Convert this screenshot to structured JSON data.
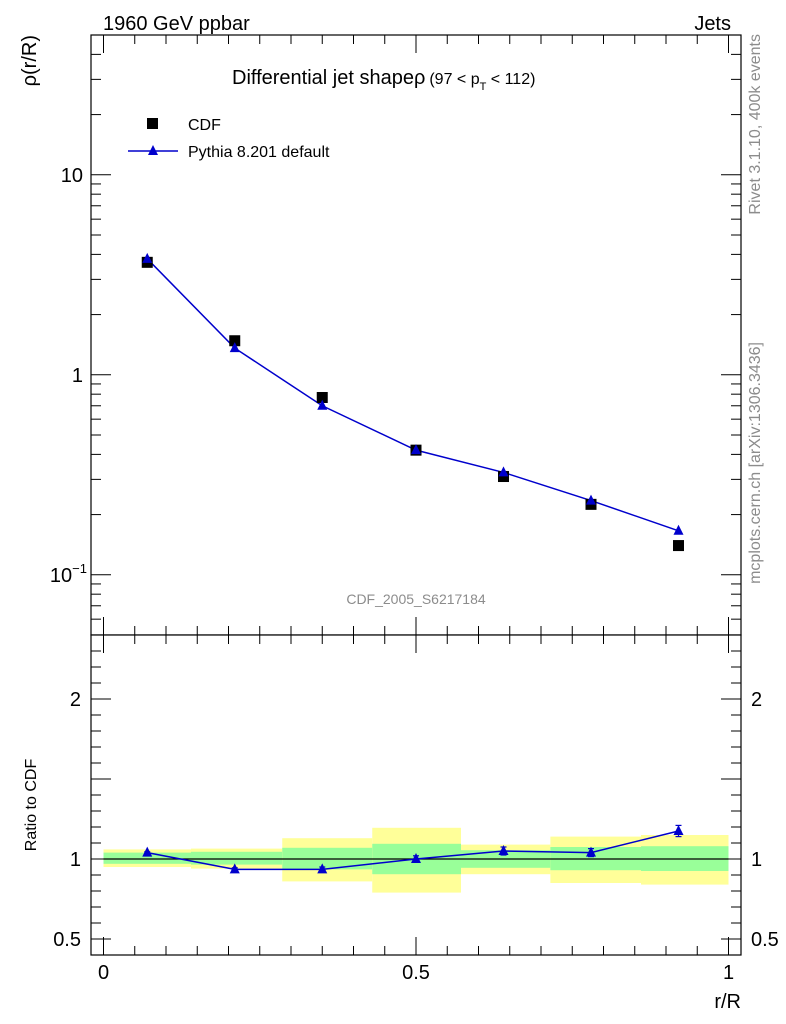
{
  "header": {
    "left": "1960 GeV ppbar",
    "right": "Jets"
  },
  "side_labels": {
    "top": "Rivet 3.1.10,  400k events",
    "bottom": "mcplots.cern.ch [arXiv:1306.3436]"
  },
  "watermark": "CDF_2005_S6217184",
  "chart_data": [
    {
      "type": "scatter",
      "title": "Differential jet shapeρ",
      "title_range": "(97 < p",
      "title_range_sub": "T",
      "title_range_end": " < 112)",
      "ylabel": "ρ(r/R)",
      "yscale": "log",
      "xlim": [
        -0.02,
        1.02
      ],
      "ylim": [
        0.05,
        50
      ],
      "y_ticks": [
        {
          "value": 10,
          "label": "10"
        },
        {
          "value": 1,
          "label": "1"
        },
        {
          "value": 0.1,
          "label": "10",
          "sup": "−1"
        }
      ],
      "legend_position": "top-left",
      "series": [
        {
          "name": "CDF",
          "marker": "square",
          "color": "#000000",
          "x": [
            0.07,
            0.21,
            0.35,
            0.5,
            0.64,
            0.78,
            0.92
          ],
          "y": [
            3.65,
            1.48,
            0.77,
            0.42,
            0.31,
            0.225,
            0.14
          ]
        },
        {
          "name": "Pythia 8.201 default",
          "marker": "triangle",
          "color": "#0000cc",
          "x": [
            0.07,
            0.21,
            0.35,
            0.5,
            0.64,
            0.78,
            0.92
          ],
          "y": [
            3.8,
            1.36,
            0.7,
            0.42,
            0.325,
            0.235,
            0.166
          ]
        }
      ]
    },
    {
      "type": "scatter",
      "xlabel": "r/R",
      "ylabel": "Ratio to CDF",
      "xlim": [
        -0.02,
        1.02
      ],
      "ylim": [
        0.4,
        2.4
      ],
      "x_ticks": [
        {
          "value": 0,
          "label": "0"
        },
        {
          "value": 0.5,
          "label": "0.5"
        },
        {
          "value": 1,
          "label": "1"
        }
      ],
      "y_ticks": [
        {
          "value": 2,
          "label": "2"
        },
        {
          "value": 1,
          "label": "1"
        },
        {
          "value": 0.5,
          "label": "0.5"
        }
      ],
      "bands": [
        {
          "x0": 0.0,
          "x1": 0.14,
          "green": [
            0.97,
            1.04
          ],
          "yellow": [
            0.95,
            1.06
          ]
        },
        {
          "x0": 0.14,
          "x1": 0.286,
          "green": [
            0.965,
            1.045
          ],
          "yellow": [
            0.94,
            1.065
          ]
        },
        {
          "x0": 0.286,
          "x1": 0.43,
          "green": [
            0.935,
            1.07
          ],
          "yellow": [
            0.86,
            1.13
          ]
        },
        {
          "x0": 0.43,
          "x1": 0.572,
          "green": [
            0.905,
            1.095
          ],
          "yellow": [
            0.79,
            1.195
          ]
        },
        {
          "x0": 0.572,
          "x1": 0.715,
          "green": [
            0.945,
            1.055
          ],
          "yellow": [
            0.905,
            1.09
          ]
        },
        {
          "x0": 0.715,
          "x1": 0.86,
          "green": [
            0.93,
            1.075
          ],
          "yellow": [
            0.85,
            1.14
          ]
        },
        {
          "x0": 0.86,
          "x1": 1.0,
          "green": [
            0.925,
            1.08
          ],
          "yellow": [
            0.84,
            1.15
          ]
        }
      ],
      "series": [
        {
          "name": "Pythia 8.201 default",
          "marker": "triangle",
          "color": "#0000cc",
          "x": [
            0.07,
            0.21,
            0.35,
            0.5,
            0.64,
            0.78,
            0.92
          ],
          "y": [
            1.04,
            0.935,
            0.935,
            1.0,
            1.05,
            1.04,
            1.175
          ],
          "err": [
            0.005,
            0.01,
            0.015,
            0.02,
            0.025,
            0.025,
            0.035
          ]
        }
      ]
    }
  ]
}
